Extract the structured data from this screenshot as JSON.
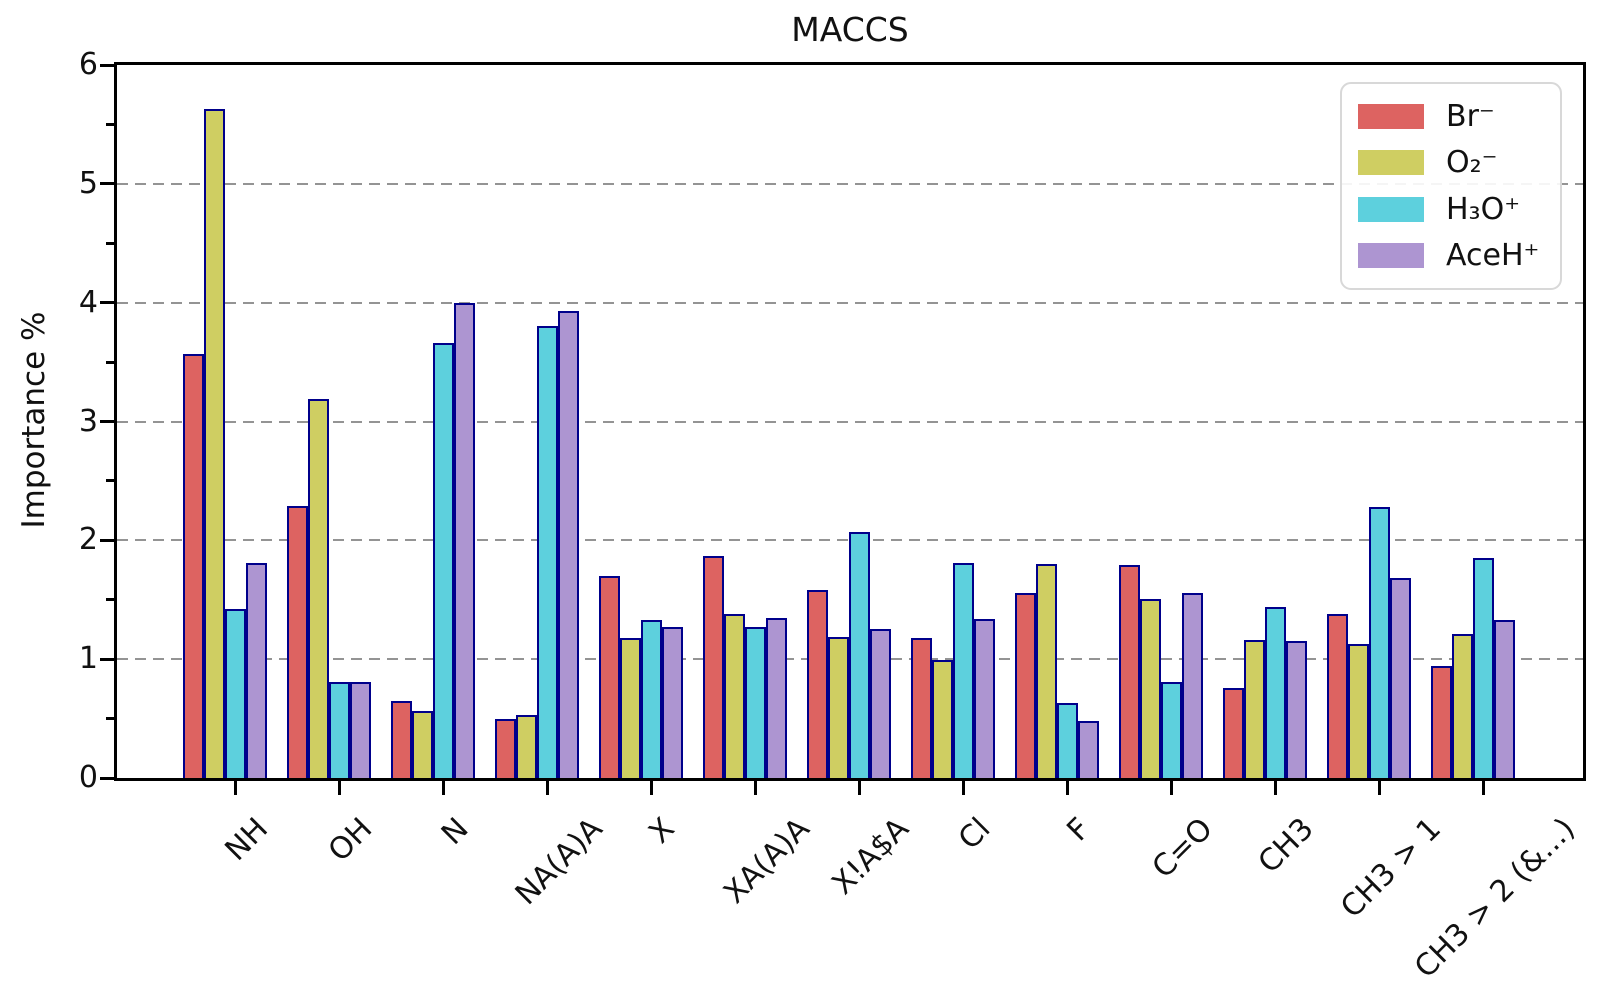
{
  "chart_data": {
    "type": "bar",
    "title": "MACCS",
    "xlabel": "",
    "ylabel": "Importance %",
    "ylim": [
      0,
      6
    ],
    "yticks": [
      0,
      1,
      2,
      3,
      4,
      5,
      6
    ],
    "grid": "horizontal dashed gridlines at 1-5",
    "legend_position": "upper right",
    "background_color": "#ffffff",
    "bar_edge_color": "#00008b",
    "gridline_color": "#949494",
    "categories": [
      "NH",
      "OH",
      "N",
      "NA(A)A",
      "X",
      "XA(A)A",
      "X!A$A",
      "Cl",
      "F",
      "C=O",
      "CH3",
      "CH3 > 1",
      "CH3 > 2 (&...)"
    ],
    "series": [
      {
        "name": "Br⁻",
        "color": "#dd6361",
        "values": [
          3.57,
          2.29,
          0.65,
          0.5,
          1.7,
          1.87,
          1.58,
          1.18,
          1.56,
          1.79,
          0.76,
          1.38,
          0.94
        ]
      },
      {
        "name": "O₂⁻",
        "color": "#cfce62",
        "values": [
          5.63,
          3.19,
          0.56,
          0.53,
          1.18,
          1.38,
          1.19,
          0.99,
          1.8,
          1.51,
          1.16,
          1.13,
          1.21
        ]
      },
      {
        "name": "H₃O⁺",
        "color": "#5dd0dd",
        "values": [
          1.42,
          0.81,
          3.66,
          3.8,
          1.33,
          1.27,
          2.07,
          1.81,
          0.63,
          0.81,
          1.44,
          2.28,
          1.85
        ]
      },
      {
        "name": "AceH⁺",
        "color": "#ad95d1",
        "values": [
          1.81,
          0.81,
          4.0,
          3.93,
          1.27,
          1.35,
          1.25,
          1.34,
          0.48,
          1.56,
          1.15,
          1.68,
          1.33
        ]
      }
    ]
  }
}
